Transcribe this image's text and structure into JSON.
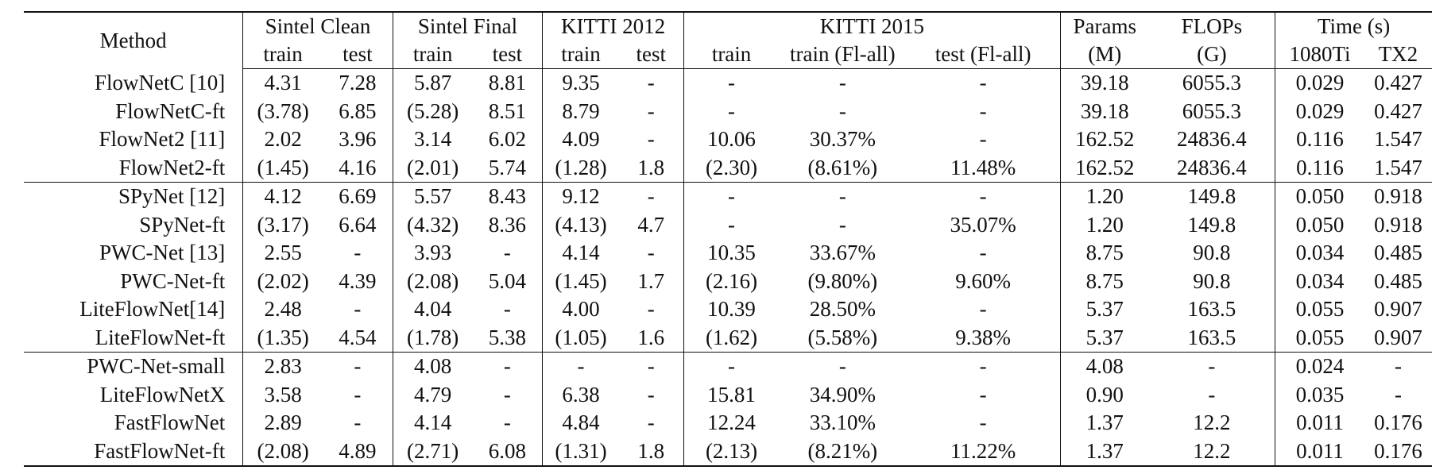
{
  "table": {
    "header_groups": {
      "method": "Method",
      "sintel_clean": "Sintel Clean",
      "sintel_final": "Sintel Final",
      "kitti2012": "KITTI 2012",
      "kitti2015": "KITTI 2015",
      "params": "Params",
      "flops": "FLOPs",
      "time": "Time (s)"
    },
    "sub_headers": {
      "sc_train": "train",
      "sc_test": "test",
      "sf_train": "train",
      "sf_test": "test",
      "k12_train": "train",
      "k12_test": "test",
      "k15_train": "train",
      "k15_train_fl": "train (Fl-all)",
      "k15_test_fl": "test (Fl-all)",
      "params_unit": "(M)",
      "flops_unit": "(G)",
      "time_1080": "1080Ti",
      "time_tx2": "TX2"
    },
    "rows": [
      [
        "FlowNetC [10]",
        "4.31",
        "7.28",
        "5.87",
        "8.81",
        "9.35",
        "-",
        "-",
        "-",
        "-",
        "39.18",
        "6055.3",
        "0.029",
        "0.427"
      ],
      [
        "FlowNetC-ft",
        "(3.78)",
        "6.85",
        "(5.28)",
        "8.51",
        "8.79",
        "-",
        "-",
        "-",
        "-",
        "39.18",
        "6055.3",
        "0.029",
        "0.427"
      ],
      [
        "FlowNet2 [11]",
        "2.02",
        "3.96",
        "3.14",
        "6.02",
        "4.09",
        "-",
        "10.06",
        "30.37%",
        "-",
        "162.52",
        "24836.4",
        "0.116",
        "1.547"
      ],
      [
        "FlowNet2-ft",
        "(1.45)",
        "4.16",
        "(2.01)",
        "5.74",
        "(1.28)",
        "1.8",
        "(2.30)",
        "(8.61%)",
        "11.48%",
        "162.52",
        "24836.4",
        "0.116",
        "1.547"
      ],
      [
        "SPyNet [12]",
        "4.12",
        "6.69",
        "5.57",
        "8.43",
        "9.12",
        "-",
        "-",
        "-",
        "-",
        "1.20",
        "149.8",
        "0.050",
        "0.918"
      ],
      [
        "SPyNet-ft",
        "(3.17)",
        "6.64",
        "(4.32)",
        "8.36",
        "(4.13)",
        "4.7",
        "-",
        "-",
        "35.07%",
        "1.20",
        "149.8",
        "0.050",
        "0.918"
      ],
      [
        "PWC-Net [13]",
        "2.55",
        "-",
        "3.93",
        "-",
        "4.14",
        "-",
        "10.35",
        "33.67%",
        "-",
        "8.75",
        "90.8",
        "0.034",
        "0.485"
      ],
      [
        "PWC-Net-ft",
        "(2.02)",
        "4.39",
        "(2.08)",
        "5.04",
        "(1.45)",
        "1.7",
        "(2.16)",
        "(9.80%)",
        "9.60%",
        "8.75",
        "90.8",
        "0.034",
        "0.485"
      ],
      [
        "LiteFlowNet[14]",
        "2.48",
        "-",
        "4.04",
        "-",
        "4.00",
        "-",
        "10.39",
        "28.50%",
        "-",
        "5.37",
        "163.5",
        "0.055",
        "0.907"
      ],
      [
        "LiteFlowNet-ft",
        "(1.35)",
        "4.54",
        "(1.78)",
        "5.38",
        "(1.05)",
        "1.6",
        "(1.62)",
        "(5.58%)",
        "9.38%",
        "5.37",
        "163.5",
        "0.055",
        "0.907"
      ],
      [
        "PWC-Net-small",
        "2.83",
        "-",
        "4.08",
        "-",
        "-",
        "-",
        "-",
        "-",
        "-",
        "4.08",
        "-",
        "0.024",
        "-"
      ],
      [
        "LiteFlowNetX",
        "3.58",
        "-",
        "4.79",
        "-",
        "6.38",
        "-",
        "15.81",
        "34.90%",
        "-",
        "0.90",
        "-",
        "0.035",
        "-"
      ],
      [
        "FastFlowNet",
        "2.89",
        "-",
        "4.14",
        "-",
        "4.84",
        "-",
        "12.24",
        "33.10%",
        "-",
        "1.37",
        "12.2",
        "0.011",
        "0.176"
      ],
      [
        "FastFlowNet-ft",
        "(2.08)",
        "4.89",
        "(2.71)",
        "6.08",
        "(1.31)",
        "1.8",
        "(2.13)",
        "(8.21%)",
        "11.22%",
        "1.37",
        "12.2",
        "0.011",
        "0.176"
      ]
    ]
  }
}
